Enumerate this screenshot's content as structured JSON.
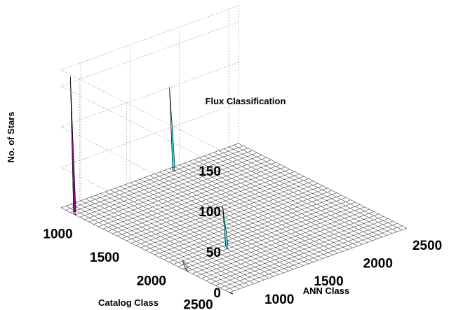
{
  "chart_data": {
    "type": "surface3d",
    "title": "Flux Classification",
    "xlabel": "ANN Class",
    "ylabel": "Catalog Class",
    "zlabel": "No. of Stars",
    "x_ticks": [
      1000,
      1500,
      2000,
      2500
    ],
    "y_ticks": [
      1000,
      1500,
      2000,
      2500
    ],
    "z_ticks": [
      0,
      50,
      100,
      150
    ],
    "xlim": [
      800,
      2600
    ],
    "ylim": [
      800,
      2600
    ],
    "zlim": [
      0,
      170
    ],
    "grid": true,
    "peaks": [
      {
        "ann_class": 800,
        "catalog_class": 900,
        "count": 168,
        "side_color": "#8b0a8b"
      },
      {
        "ann_class": 1900,
        "catalog_class": 800,
        "count": 100,
        "side_color": "#35e0ea"
      },
      {
        "ann_class": 1300,
        "catalog_class": 2000,
        "count": 50,
        "side_color": "#35e0ea"
      },
      {
        "ann_class": 800,
        "catalog_class": 2100,
        "count": 10,
        "side_color": "#d8d8d8"
      }
    ]
  }
}
